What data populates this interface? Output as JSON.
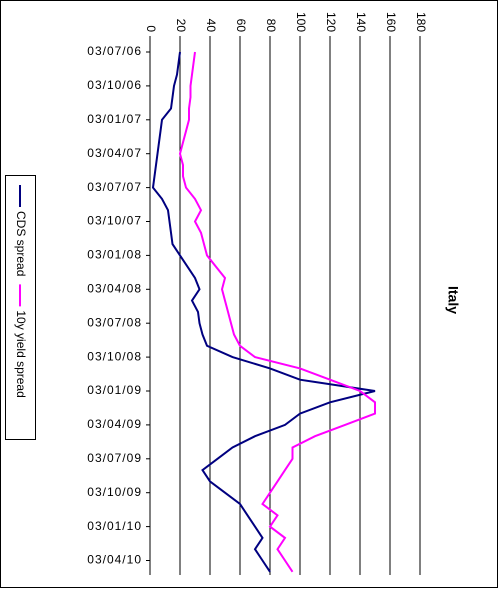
{
  "chart_data": {
    "type": "line",
    "title": "Italy",
    "x": [
      "03/07/06",
      "03/08/06",
      "03/09/06",
      "03/10/06",
      "03/11/06",
      "03/12/06",
      "03/01/07",
      "03/02/07",
      "03/03/07",
      "03/04/07",
      "03/05/07",
      "03/06/07",
      "03/07/07",
      "03/08/07",
      "03/09/07",
      "03/10/07",
      "03/11/07",
      "03/12/07",
      "03/01/08",
      "03/02/08",
      "03/03/08",
      "03/04/08",
      "03/05/08",
      "03/06/08",
      "03/07/08",
      "03/08/08",
      "03/09/08",
      "03/10/08",
      "03/11/08",
      "03/12/08",
      "03/01/09",
      "03/02/09",
      "03/03/09",
      "03/04/09",
      "03/05/09",
      "03/06/09",
      "03/07/09",
      "03/08/09",
      "03/09/09",
      "03/10/09",
      "03/11/09",
      "03/12/09",
      "03/01/10",
      "03/02/10",
      "03/03/10",
      "03/04/10",
      "03/05/10"
    ],
    "series": [
      {
        "name": "CDS spread",
        "color": "#000080",
        "values": [
          20,
          19,
          18,
          16,
          15,
          14,
          8,
          7,
          6,
          5,
          4,
          3,
          2,
          8,
          12,
          13,
          14,
          15,
          20,
          25,
          30,
          33,
          28,
          32,
          33,
          35,
          38,
          55,
          80,
          100,
          150,
          120,
          100,
          90,
          70,
          55,
          45,
          35,
          40,
          50,
          60,
          65,
          70,
          75,
          70,
          75,
          80
        ]
      },
      {
        "name": "10y yield spread",
        "color": "#ff00ff",
        "values": [
          30,
          29,
          28,
          27,
          27,
          26,
          26,
          24,
          22,
          20,
          22,
          22,
          24,
          30,
          34,
          30,
          34,
          36,
          38,
          44,
          50,
          48,
          50,
          52,
          54,
          56,
          60,
          70,
          100,
          120,
          140,
          150,
          150,
          130,
          110,
          95,
          95,
          90,
          85,
          80,
          75,
          85,
          80,
          90,
          85,
          90,
          95
        ]
      }
    ],
    "xticks": [
      "03/07/06",
      "03/10/06",
      "03/01/07",
      "03/04/07",
      "03/07/07",
      "03/10/07",
      "03/01/08",
      "03/04/08",
      "03/07/08",
      "03/10/08",
      "03/01/09",
      "03/04/09",
      "03/07/09",
      "03/10/09",
      "03/01/10",
      "03/04/10"
    ],
    "ylim": [
      0,
      180
    ],
    "yticks": [
      0,
      20,
      40,
      60,
      80,
      100,
      120,
      140,
      160,
      180
    ],
    "grid": true
  }
}
